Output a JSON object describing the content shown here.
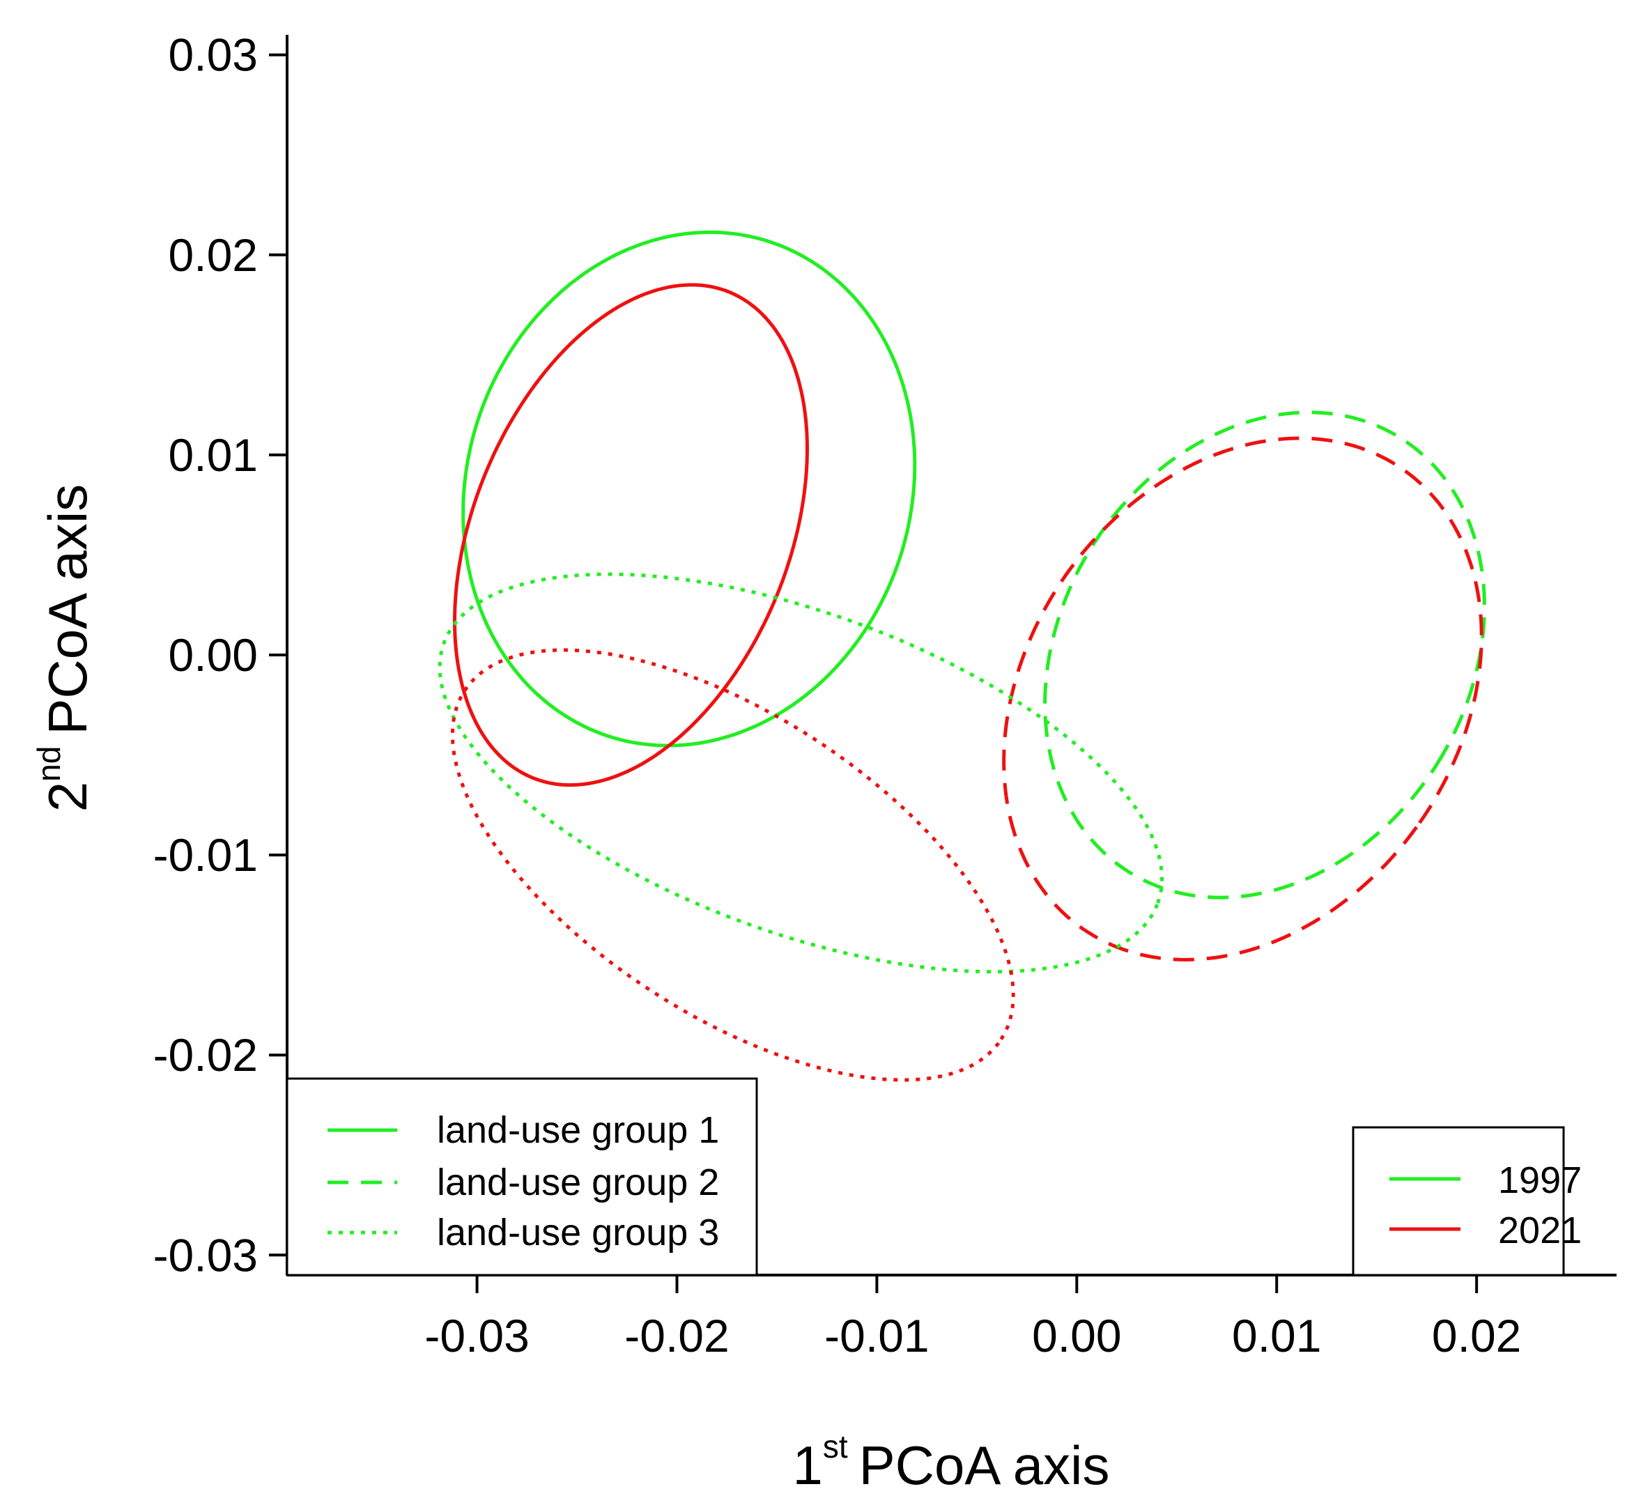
{
  "chart_data": {
    "type": "scatter",
    "subtype": "ellipse-plot",
    "title": "",
    "xlabel": {
      "prefix": "1",
      "sup": "st",
      "text": "PCoA axis"
    },
    "ylabel": {
      "prefix": "2",
      "sup": "nd",
      "text": "PCoA axis"
    },
    "xlim": [
      -0.0395,
      0.027
    ],
    "ylim": [
      -0.031,
      0.031
    ],
    "xticks": [
      -0.03,
      -0.02,
      -0.01,
      0.0,
      0.01,
      0.02
    ],
    "xtick_labels": [
      "-0.03",
      "-0.02",
      "-0.01",
      "0.00",
      "0.01",
      "0.02"
    ],
    "yticks": [
      -0.03,
      -0.02,
      -0.01,
      0.0,
      0.01,
      0.02,
      0.03
    ],
    "ytick_labels": [
      "-0.03",
      "-0.02",
      "-0.01",
      "0.00",
      "0.01",
      "0.02",
      "0.03"
    ],
    "grid": false,
    "colors": {
      "y1997": "#22ee22",
      "y2021": "#ee1111",
      "axis": "#000000"
    },
    "series": [
      {
        "name": "land-use group 1, 1997",
        "group": 1,
        "year": "1997",
        "style": "solid",
        "center": [
          -0.0194,
          0.0083
        ],
        "semi_axes": [
          0.0111,
          0.013
        ],
        "rotation_deg": -18
      },
      {
        "name": "land-use group 1, 2021",
        "group": 1,
        "year": "2021",
        "style": "solid",
        "center": [
          -0.0223,
          0.006
        ],
        "semi_axes": [
          0.0079,
          0.0131
        ],
        "rotation_deg": -22
      },
      {
        "name": "land-use group 2, 1997",
        "group": 2,
        "year": "1997",
        "style": "dashed",
        "center": [
          0.0094,
          0.0
        ],
        "semi_axes": [
          0.0102,
          0.0128
        ],
        "rotation_deg": -32
      },
      {
        "name": "land-use group 2, 2021",
        "group": 2,
        "year": "2021",
        "style": "dashed",
        "center": [
          0.0083,
          -0.0022
        ],
        "semi_axes": [
          0.0108,
          0.014
        ],
        "rotation_deg": -35
      },
      {
        "name": "land-use group 3, 1997",
        "group": 3,
        "year": "1997",
        "style": "dotted",
        "center": [
          -0.0138,
          -0.0059
        ],
        "semi_axes": [
          0.019,
          0.008
        ],
        "rotation_deg": -20
      },
      {
        "name": "land-use group 3, 2021",
        "group": 3,
        "year": "2021",
        "style": "dotted",
        "center": [
          -0.0172,
          -0.0105
        ],
        "semi_axes": [
          0.016,
          0.0075
        ],
        "rotation_deg": -33
      }
    ],
    "legend_linetype": {
      "position": "bottom-left",
      "entries": [
        {
          "label": "land-use group 1",
          "style": "solid"
        },
        {
          "label": "land-use group 2",
          "style": "dashed"
        },
        {
          "label": "land-use group 3",
          "style": "dotted"
        }
      ]
    },
    "legend_year": {
      "position": "bottom-right",
      "entries": [
        {
          "label": "1997",
          "color": "#22ee22"
        },
        {
          "label": "2021",
          "color": "#ee1111"
        }
      ]
    }
  }
}
